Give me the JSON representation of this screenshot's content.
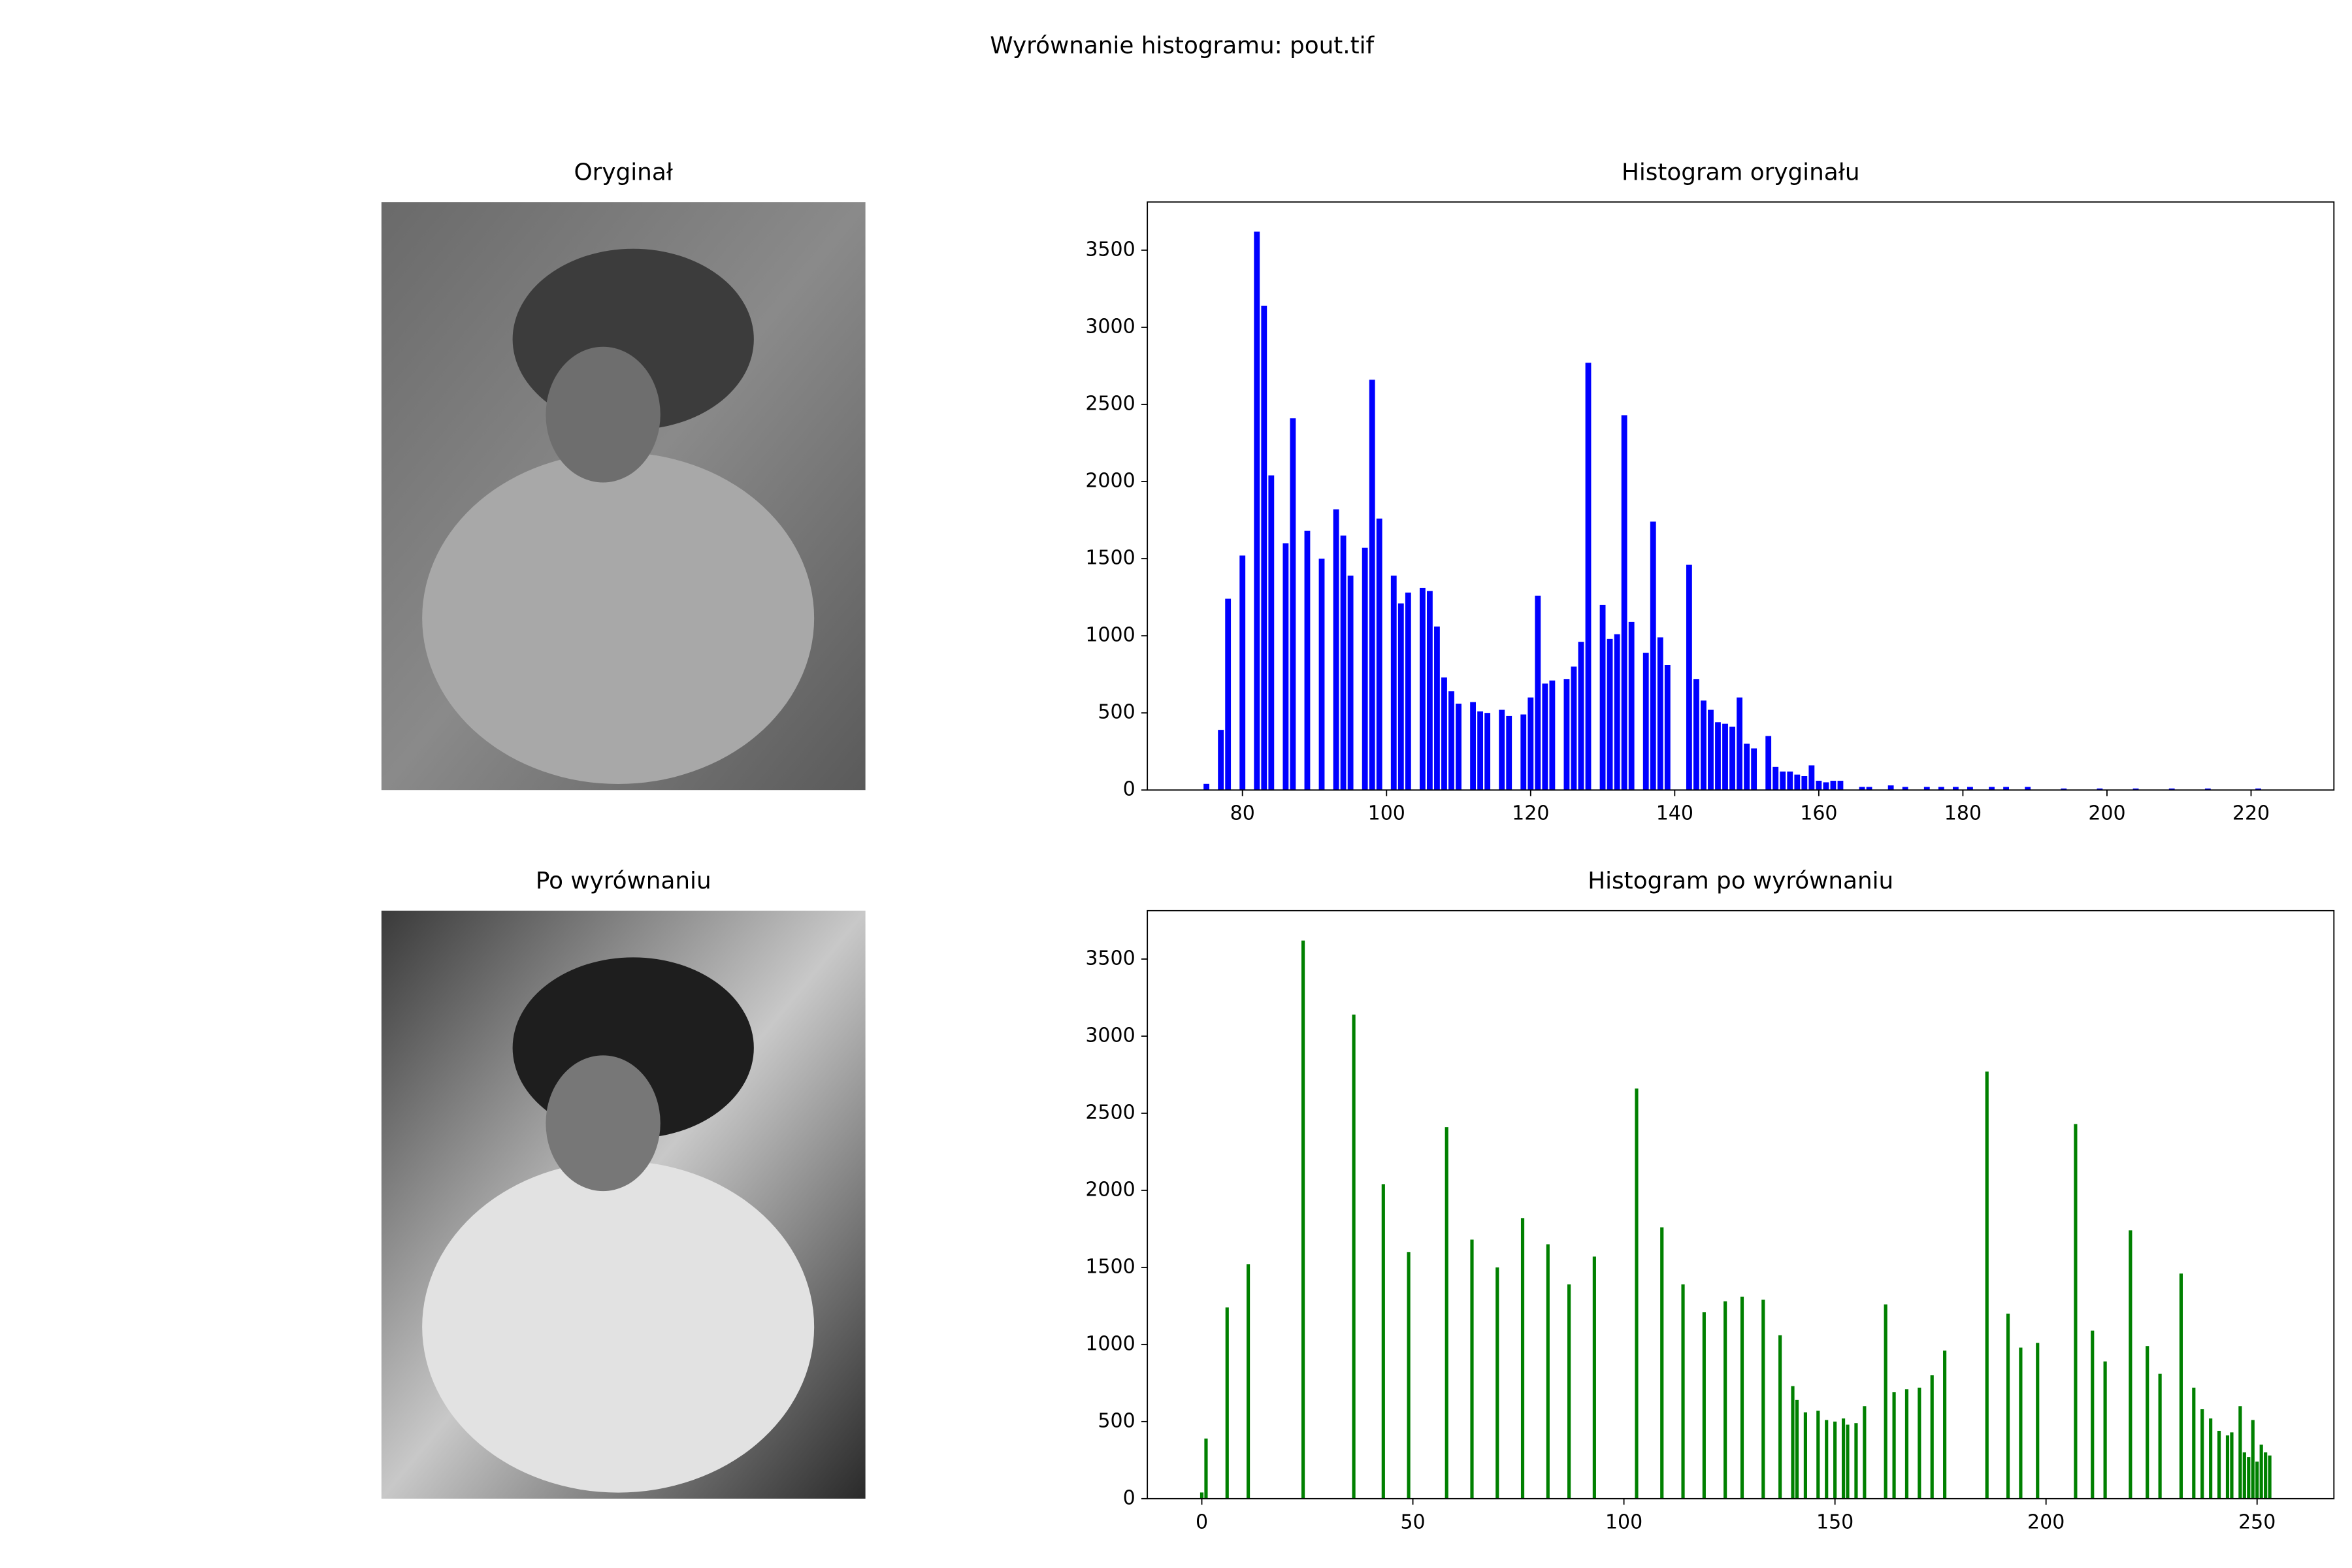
{
  "title": "Wyrównanie histogramu: pout.tif",
  "chart_data": [
    {
      "type": "image",
      "title": "Oryginał"
    },
    {
      "type": "bar",
      "title": "Histogram oryginału",
      "color": "#0000ff",
      "x": [
        75,
        77,
        78,
        80,
        82,
        83,
        84,
        86,
        87,
        89,
        91,
        93,
        94,
        95,
        97,
        98,
        99,
        101,
        102,
        103,
        105,
        106,
        107,
        108,
        109,
        110,
        112,
        113,
        114,
        116,
        117,
        119,
        120,
        121,
        122,
        123,
        125,
        126,
        127,
        128,
        130,
        131,
        132,
        133,
        134,
        136,
        137,
        138,
        139,
        142,
        143,
        144,
        145,
        146,
        147,
        148,
        149,
        150,
        151,
        153,
        154,
        155,
        156,
        157,
        158,
        159,
        160,
        161,
        162,
        163,
        166,
        167,
        170,
        172,
        175,
        177,
        179,
        181,
        184,
        186,
        189,
        194,
        199,
        204,
        209,
        214,
        221
      ],
      "values": [
        40,
        390,
        1240,
        1520,
        3620,
        3140,
        2040,
        1600,
        2410,
        1680,
        1500,
        1820,
        1650,
        1390,
        1570,
        2660,
        1760,
        1390,
        1210,
        1280,
        1310,
        1290,
        1060,
        730,
        640,
        560,
        570,
        510,
        500,
        520,
        480,
        490,
        600,
        1260,
        690,
        710,
        720,
        800,
        960,
        2770,
        1200,
        980,
        1010,
        2430,
        1090,
        890,
        1740,
        990,
        810,
        1460,
        720,
        580,
        520,
        440,
        430,
        410,
        600,
        300,
        270,
        350,
        150,
        120,
        120,
        100,
        90,
        160,
        60,
        50,
        60,
        60,
        20,
        20,
        30,
        20,
        20,
        20,
        20,
        20,
        20,
        20,
        20,
        10,
        10,
        10,
        10,
        10,
        10
      ],
      "xlim": [
        66.8,
        231.5
      ],
      "xticks": [
        80,
        100,
        120,
        140,
        160,
        180,
        200,
        220
      ],
      "ylim": [
        0,
        3812
      ],
      "yticks": [
        0,
        500,
        1000,
        1500,
        2000,
        2500,
        3000,
        3500
      ]
    },
    {
      "type": "image",
      "title": "Po wyrównaniu"
    },
    {
      "type": "bar",
      "title": "Histogram po wyrównaniu",
      "color": "#008000",
      "x": [
        0,
        1,
        6,
        11,
        24,
        36,
        43,
        49,
        58,
        64,
        70,
        76,
        82,
        87,
        93,
        103,
        109,
        114,
        119,
        124,
        128,
        133,
        137,
        140,
        141,
        143,
        146,
        148,
        150,
        152,
        153,
        155,
        157,
        162,
        164,
        167,
        170,
        173,
        176,
        186,
        191,
        194,
        198,
        207,
        211,
        214,
        220,
        224,
        227,
        232,
        235,
        237,
        239,
        241,
        243,
        244,
        246,
        247,
        248,
        249,
        250,
        251,
        252,
        253
      ],
      "values": [
        40,
        390,
        1240,
        1520,
        3620,
        3140,
        2040,
        1600,
        2410,
        1680,
        1500,
        1820,
        1650,
        1390,
        1570,
        2660,
        1760,
        1390,
        1210,
        1280,
        1310,
        1290,
        1060,
        730,
        640,
        560,
        570,
        510,
        500,
        520,
        480,
        490,
        600,
        1260,
        690,
        710,
        720,
        800,
        960,
        2770,
        1200,
        980,
        1010,
        2430,
        1090,
        890,
        1740,
        990,
        810,
        1460,
        720,
        580,
        520,
        440,
        410,
        430,
        600,
        300,
        270,
        510,
        240,
        350,
        300,
        280
      ],
      "xlim": [
        -12.9,
        268.2
      ],
      "xticks": [
        0,
        50,
        100,
        150,
        200,
        250
      ],
      "ylim": [
        0,
        3814
      ],
      "yticks": [
        0,
        500,
        1000,
        1500,
        2000,
        2500,
        3000,
        3500
      ]
    }
  ]
}
